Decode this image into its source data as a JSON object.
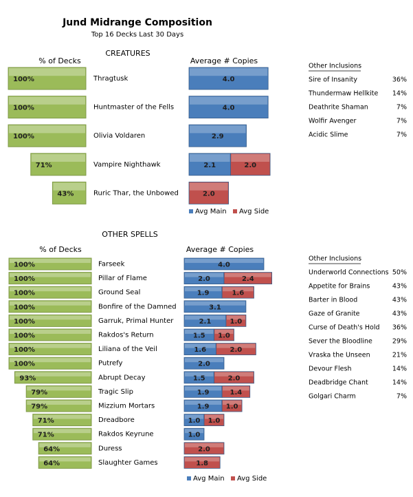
{
  "header": {
    "title": "Jund Midrange Composition",
    "subtitle": "Top 16 Decks Last 30 Days"
  },
  "chart_data": [
    {
      "type": "hbar_left",
      "section": "CREATURES",
      "title": "% of Decks",
      "color": "#9bbb59",
      "categories": [
        "Thragtusk",
        "Huntmaster of the Fells",
        "Olivia Voldaren",
        "Vampire Nighthawk",
        "Ruric Thar, the Unbowed"
      ],
      "values": [
        100,
        100,
        100,
        71,
        43
      ],
      "value_labels": [
        "100%",
        "100%",
        "100%",
        "71%",
        "43%"
      ]
    },
    {
      "type": "stacked_hbar",
      "title": "Average # Copies",
      "series": [
        {
          "name": "Avg Main",
          "color": "#4a7ebb",
          "values": [
            4.0,
            4.0,
            2.9,
            2.1,
            null
          ],
          "value_labels": [
            "4.0",
            "4.0",
            "2.9",
            "2.1",
            null
          ]
        },
        {
          "name": "Avg Side",
          "color": "#c0504d",
          "values": [
            null,
            null,
            null,
            2.0,
            2.0
          ],
          "value_labels": [
            null,
            null,
            null,
            "2.0",
            "2.0"
          ]
        }
      ]
    },
    {
      "type": "hbar_left",
      "section": "OTHER SPELLS",
      "title": "% of Decks",
      "color": "#9bbb59",
      "categories": [
        "Farseek",
        "Pillar of Flame",
        "Ground Seal",
        "Bonfire of the Damned",
        "Garruk, Primal Hunter",
        "Rakdos's Return",
        "Liliana of the Veil",
        "Putrefy",
        "Abrupt Decay",
        "Tragic Slip",
        "Mizzium Mortars",
        "Dreadbore",
        "Rakdos Keyrune",
        "Duress",
        "Slaughter Games"
      ],
      "values": [
        100,
        100,
        100,
        100,
        100,
        100,
        100,
        100,
        93,
        79,
        79,
        71,
        71,
        64,
        64
      ],
      "value_labels": [
        "100%",
        "100%",
        "100%",
        "100%",
        "100%",
        "100%",
        "100%",
        "100%",
        "93%",
        "79%",
        "79%",
        "71%",
        "71%",
        "64%",
        "64%"
      ]
    },
    {
      "type": "stacked_hbar",
      "title": "Average # Copies",
      "series": [
        {
          "name": "Avg Main",
          "color": "#4a7ebb",
          "values": [
            4.0,
            2.0,
            1.9,
            3.1,
            2.1,
            1.5,
            1.6,
            2.0,
            1.5,
            1.9,
            1.9,
            1.0,
            1.0,
            null,
            null
          ],
          "value_labels": [
            "4.0",
            "2.0",
            "1.9",
            "3.1",
            "2.1",
            "1.5",
            "1.6",
            "2.0",
            "1.5",
            "1.9",
            "1.9",
            "1.0",
            "1.0",
            null,
            null
          ]
        },
        {
          "name": "Avg Side",
          "color": "#c0504d",
          "values": [
            null,
            2.4,
            1.6,
            null,
            1.0,
            1.0,
            2.0,
            null,
            2.0,
            1.4,
            1.0,
            1.0,
            null,
            2.0,
            1.8
          ],
          "value_labels": [
            null,
            "2.4",
            "1.6",
            null,
            "1.0",
            "1.0",
            "2.0",
            null,
            "2.0",
            "1.4",
            "1.0",
            "1.0",
            null,
            "2.0",
            "1.8"
          ]
        }
      ]
    }
  ],
  "other_inclusions": [
    {
      "heading": "Other Inclusions",
      "rows": [
        [
          "Sire of Insanity",
          "36%"
        ],
        [
          "Thundermaw Hellkite",
          "14%"
        ],
        [
          "Deathrite Shaman",
          "7%"
        ],
        [
          "Wolfir Avenger",
          "7%"
        ],
        [
          "Acidic Slime",
          "7%"
        ]
      ]
    },
    {
      "heading": "Other Inclusions",
      "rows": [
        [
          "Underworld Connections",
          "50%"
        ],
        [
          "Appetite for Brains",
          "43%"
        ],
        [
          "Barter in Blood",
          "43%"
        ],
        [
          "Gaze of Granite",
          "43%"
        ],
        [
          "Curse of Death's Hold",
          "36%"
        ],
        [
          "Sever the Bloodline",
          "29%"
        ],
        [
          "Vraska the Unseen",
          "21%"
        ],
        [
          "Devour Flesh",
          "14%"
        ],
        [
          "Deadbridge Chant",
          "14%"
        ],
        [
          "Golgari Charm",
          "7%"
        ]
      ]
    }
  ]
}
